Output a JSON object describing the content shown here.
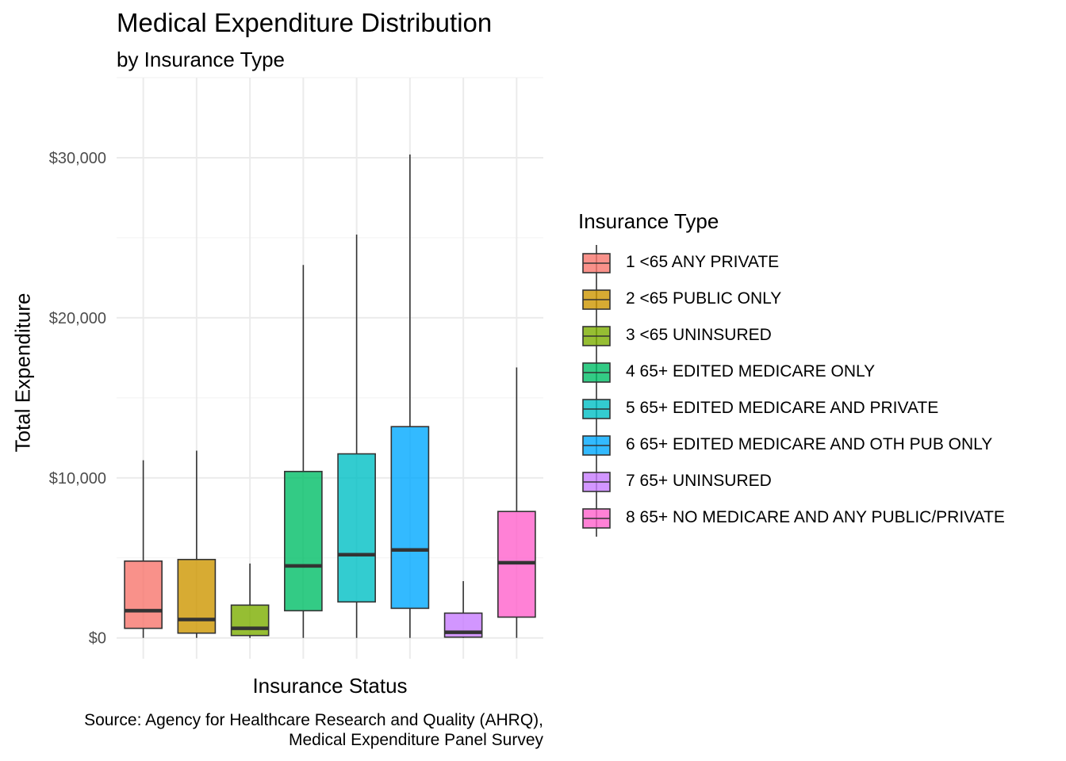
{
  "chart_data": {
    "type": "box",
    "title": "Medical Expenditure Distribution",
    "subtitle": "by Insurance Type",
    "xlabel": "Insurance Status",
    "ylabel": "Total Expenditure",
    "caption_lines": [
      "Source: Agency for Healthcare Research and Quality (AHRQ),",
      "Medical Expenditure Panel Survey"
    ],
    "ylim": [
      -1300,
      35000
    ],
    "yticks": [
      0,
      10000,
      20000,
      30000
    ],
    "ytick_labels": [
      "$0",
      "$10,000",
      "$20,000",
      "$30,000"
    ],
    "grid": true,
    "legend_title": "Insurance Type",
    "legend_position": "right",
    "series": [
      {
        "name": "1 <65 ANY PRIVATE",
        "color": "#F8766D",
        "whisker_low": 0,
        "q1": 600,
        "median": 1700,
        "q3": 4800,
        "whisker_high": 11100
      },
      {
        "name": "2 <65 PUBLIC ONLY",
        "color": "#CD9600",
        "whisker_low": 0,
        "q1": 300,
        "median": 1150,
        "q3": 4900,
        "whisker_high": 11700
      },
      {
        "name": "3 <65 UNINSURED",
        "color": "#7CAE00",
        "whisker_low": 0,
        "q1": 150,
        "median": 600,
        "q3": 2050,
        "whisker_high": 4650
      },
      {
        "name": "4 65+ EDITED MEDICARE ONLY",
        "color": "#00BE67",
        "whisker_low": 0,
        "q1": 1700,
        "median": 4500,
        "q3": 10400,
        "whisker_high": 23300
      },
      {
        "name": "5 65+ EDITED MEDICARE AND PRIVATE",
        "color": "#00BFC4",
        "whisker_low": 0,
        "q1": 2250,
        "median": 5200,
        "q3": 11500,
        "whisker_high": 25200
      },
      {
        "name": "6 65+ EDITED MEDICARE AND OTH PUB ONLY",
        "color": "#00A9FF",
        "whisker_low": 0,
        "q1": 1850,
        "median": 5500,
        "q3": 13200,
        "whisker_high": 30200
      },
      {
        "name": "7 65+ UNINSURED",
        "color": "#C77CFF",
        "whisker_low": 0,
        "q1": 50,
        "median": 350,
        "q3": 1550,
        "whisker_high": 3550
      },
      {
        "name": "8 65+ NO MEDICARE AND ANY PUBLIC/PRIVATE",
        "color": "#FF61CC",
        "whisker_low": 0,
        "q1": 1300,
        "median": 4700,
        "q3": 7900,
        "whisker_high": 16900
      }
    ]
  }
}
